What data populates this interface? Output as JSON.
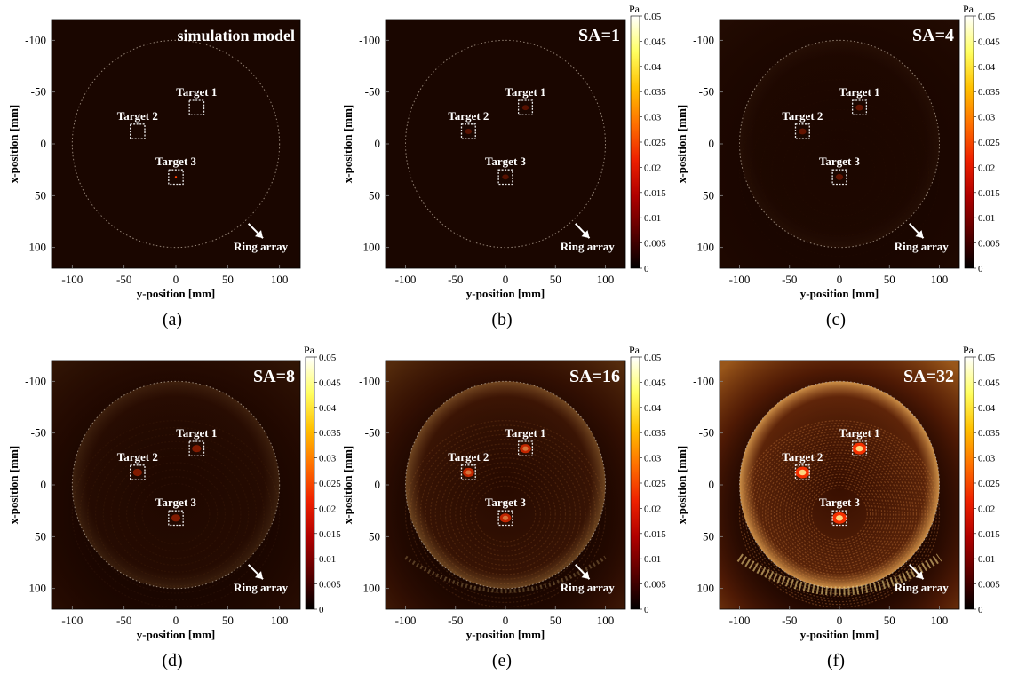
{
  "figure": {
    "panel_letters": [
      "(a)",
      "(b)",
      "(c)",
      "(d)",
      "(e)",
      "(f)"
    ]
  },
  "colors": {
    "background": "#ffffff",
    "field_dark": "#1a0600",
    "target_box": "#e8e8e8",
    "ring": "#b0a090",
    "text_light": "#ffffff",
    "colormap": [
      "#000000",
      "#5a0000",
      "#b00000",
      "#ee2000",
      "#ff7000",
      "#ffc000",
      "#ffff60",
      "#ffffff"
    ]
  },
  "chart_data": [
    {
      "type": "heatmap",
      "title": "simulation model",
      "panel": "(a)",
      "xlabel": "y-position [mm]",
      "ylabel": "x-position [mm]",
      "xlim": [
        -120,
        120
      ],
      "ylim": [
        -120,
        120
      ],
      "xticks": [
        -100,
        -50,
        0,
        50,
        100
      ],
      "yticks": [
        -100,
        -50,
        0,
        50,
        100
      ],
      "intensity": 0,
      "colorbar": null,
      "ring": {
        "center": [
          0,
          0
        ],
        "radius_mm": 100,
        "label": "Ring array",
        "label_pos_mm": [
          82,
          103
        ]
      },
      "targets": [
        {
          "label": "Target 1",
          "y_mm": 20,
          "x_mm": -35,
          "size_mm": 14
        },
        {
          "label": "Target 2",
          "y_mm": -37,
          "x_mm": -12,
          "size_mm": 14
        },
        {
          "label": "Target 3",
          "y_mm": 0,
          "x_mm": 32,
          "size_mm": 14
        }
      ]
    },
    {
      "type": "heatmap",
      "title": "SA=1",
      "panel": "(b)",
      "xlabel": "y-position [mm]",
      "ylabel": "x-position [mm]",
      "xlim": [
        -120,
        120
      ],
      "ylim": [
        -120,
        120
      ],
      "xticks": [
        -100,
        -50,
        0,
        50,
        100
      ],
      "yticks": [
        -100,
        -50,
        0,
        50,
        100
      ],
      "intensity": 0.02,
      "colorbar": {
        "unit": "Pa",
        "range": [
          0,
          0.05
        ],
        "ticks": [
          "0",
          "0.005",
          "0.01",
          "0.015",
          "0.02",
          "0.025",
          "0.03",
          "0.035",
          "0.04",
          "0.045",
          "0.05"
        ]
      },
      "ring": {
        "center": [
          0,
          0
        ],
        "radius_mm": 100,
        "label": "Ring array",
        "label_pos_mm": [
          82,
          103
        ]
      },
      "targets": [
        {
          "label": "Target 1",
          "y_mm": 20,
          "x_mm": -35,
          "size_mm": 14
        },
        {
          "label": "Target 2",
          "y_mm": -37,
          "x_mm": -12,
          "size_mm": 14
        },
        {
          "label": "Target 3",
          "y_mm": 0,
          "x_mm": 32,
          "size_mm": 14
        }
      ]
    },
    {
      "type": "heatmap",
      "title": "SA=4",
      "panel": "(c)",
      "xlabel": "y-position [mm]",
      "ylabel": "x-position [mm]",
      "xlim": [
        -120,
        120
      ],
      "ylim": [
        -120,
        120
      ],
      "xticks": [
        -100,
        -50,
        0,
        50,
        100
      ],
      "yticks": [
        -100,
        -50,
        0,
        50,
        100
      ],
      "intensity": 0.06,
      "colorbar": {
        "unit": "Pa",
        "range": [
          0,
          0.05
        ],
        "ticks": [
          "0",
          "0.005",
          "0.01",
          "0.015",
          "0.02",
          "0.025",
          "0.03",
          "0.035",
          "0.04",
          "0.045",
          "0.05"
        ]
      },
      "ring": {
        "center": [
          0,
          0
        ],
        "radius_mm": 100,
        "label": "Ring array",
        "label_pos_mm": [
          82,
          103
        ]
      },
      "targets": [
        {
          "label": "Target 1",
          "y_mm": 20,
          "x_mm": -35,
          "size_mm": 14
        },
        {
          "label": "Target 2",
          "y_mm": -37,
          "x_mm": -12,
          "size_mm": 14
        },
        {
          "label": "Target 3",
          "y_mm": 0,
          "x_mm": 32,
          "size_mm": 14
        }
      ]
    },
    {
      "type": "heatmap",
      "title": "SA=8",
      "panel": "(d)",
      "xlabel": "y-position [mm]",
      "ylabel": "x-position [mm]",
      "xlim": [
        -120,
        120
      ],
      "ylim": [
        -120,
        120
      ],
      "xticks": [
        -100,
        -50,
        0,
        50,
        100
      ],
      "yticks": [
        -100,
        -50,
        0,
        50,
        100
      ],
      "intensity": 0.18,
      "colorbar": {
        "unit": "Pa",
        "range": [
          0,
          0.05
        ],
        "ticks": [
          "0",
          "0.005",
          "0.01",
          "0.015",
          "0.02",
          "0.025",
          "0.03",
          "0.035",
          "0.04",
          "0.045",
          "0.05"
        ]
      },
      "ring": {
        "center": [
          0,
          0
        ],
        "radius_mm": 100,
        "label": "Ring array",
        "label_pos_mm": [
          82,
          103
        ]
      },
      "targets": [
        {
          "label": "Target 1",
          "y_mm": 20,
          "x_mm": -35,
          "size_mm": 14
        },
        {
          "label": "Target 2",
          "y_mm": -37,
          "x_mm": -12,
          "size_mm": 14
        },
        {
          "label": "Target 3",
          "y_mm": 0,
          "x_mm": 32,
          "size_mm": 14
        }
      ]
    },
    {
      "type": "heatmap",
      "title": "SA=16",
      "panel": "(e)",
      "xlabel": "y-position [mm]",
      "ylabel": "x-position [mm]",
      "xlim": [
        -120,
        120
      ],
      "ylim": [
        -120,
        120
      ],
      "xticks": [
        -100,
        -50,
        0,
        50,
        100
      ],
      "yticks": [
        -100,
        -50,
        0,
        50,
        100
      ],
      "intensity": 0.45,
      "colorbar": {
        "unit": "Pa",
        "range": [
          0,
          0.05
        ],
        "ticks": [
          "0",
          "0.005",
          "0.01",
          "0.015",
          "0.02",
          "0.025",
          "0.03",
          "0.035",
          "0.04",
          "0.045",
          "0.05"
        ]
      },
      "ring": {
        "center": [
          0,
          0
        ],
        "radius_mm": 100,
        "label": "Ring array",
        "label_pos_mm": [
          82,
          103
        ]
      },
      "targets": [
        {
          "label": "Target 1",
          "y_mm": 20,
          "x_mm": -35,
          "size_mm": 14
        },
        {
          "label": "Target 2",
          "y_mm": -37,
          "x_mm": -12,
          "size_mm": 14
        },
        {
          "label": "Target 3",
          "y_mm": 0,
          "x_mm": 32,
          "size_mm": 14
        }
      ]
    },
    {
      "type": "heatmap",
      "title": "SA=32",
      "panel": "(f)",
      "xlabel": "y-position [mm]",
      "ylabel": "x-position [mm]",
      "xlim": [
        -120,
        120
      ],
      "ylim": [
        -120,
        120
      ],
      "xticks": [
        -100,
        -50,
        0,
        50,
        100
      ],
      "yticks": [
        -100,
        -50,
        0,
        50,
        100
      ],
      "intensity": 1.0,
      "colorbar": {
        "unit": "Pa",
        "range": [
          0,
          0.05
        ],
        "ticks": [
          "0",
          "0.005",
          "0.01",
          "0.015",
          "0.02",
          "0.025",
          "0.03",
          "0.035",
          "0.04",
          "0.045",
          "0.05"
        ]
      },
      "ring": {
        "center": [
          0,
          0
        ],
        "radius_mm": 100,
        "label": "Ring array",
        "label_pos_mm": [
          82,
          103
        ]
      },
      "targets": [
        {
          "label": "Target 1",
          "y_mm": 20,
          "x_mm": -35,
          "size_mm": 14
        },
        {
          "label": "Target 2",
          "y_mm": -37,
          "x_mm": -12,
          "size_mm": 14
        },
        {
          "label": "Target 3",
          "y_mm": 0,
          "x_mm": 32,
          "size_mm": 14
        }
      ]
    }
  ]
}
